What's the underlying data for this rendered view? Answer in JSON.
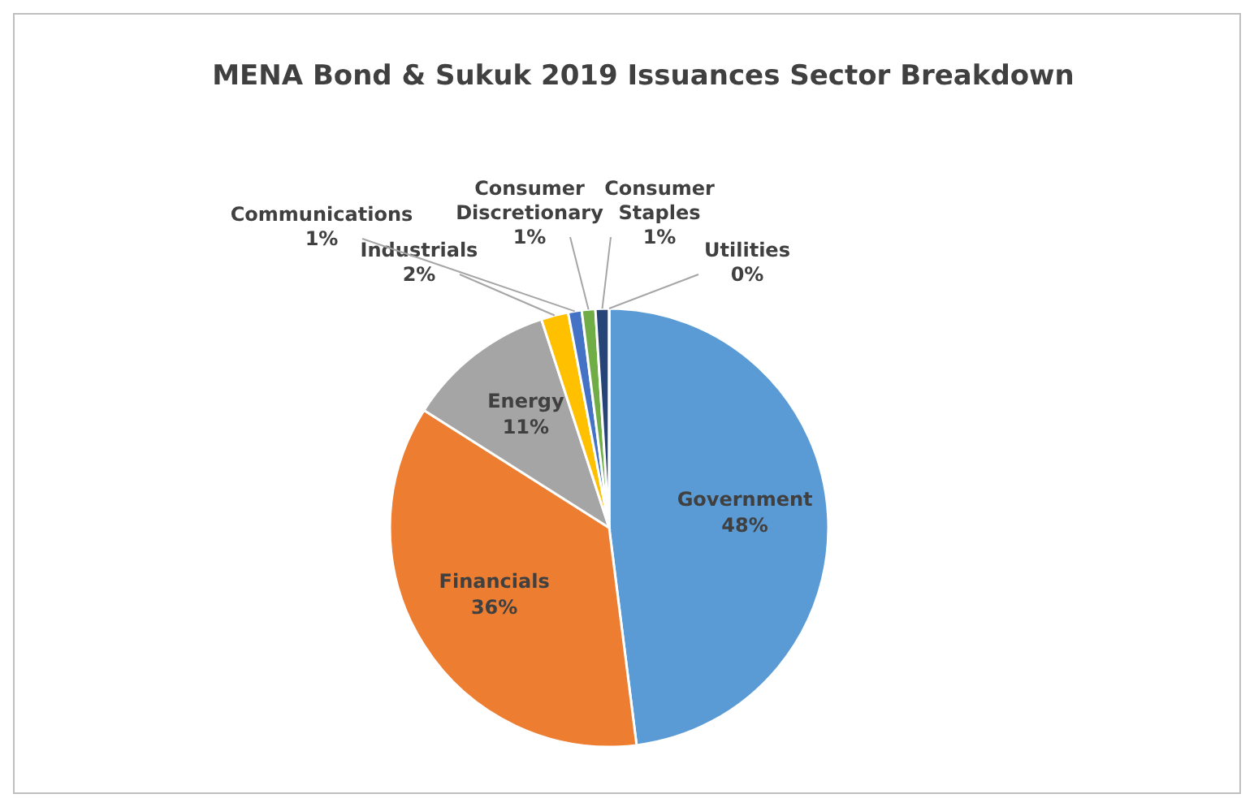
{
  "chart_data": {
    "type": "pie",
    "title": "MENA Bond & Sukuk 2019 Issuances Sector Breakdown",
    "categories": [
      "Government",
      "Financials",
      "Energy",
      "Industrials",
      "Communications",
      "Consumer Discretionary",
      "Consumer Staples",
      "Utilities"
    ],
    "values": [
      48,
      36,
      11,
      2,
      1,
      1,
      1,
      0
    ],
    "colors": [
      "#5b9bd5",
      "#ed7d31",
      "#a5a5a5",
      "#ffc000",
      "#4472c4",
      "#70ad47",
      "#264478",
      "#d49a8c"
    ],
    "value_labels": [
      "48%",
      "36%",
      "11%",
      "2%",
      "1%",
      "1%",
      "1%",
      "0%"
    ]
  }
}
